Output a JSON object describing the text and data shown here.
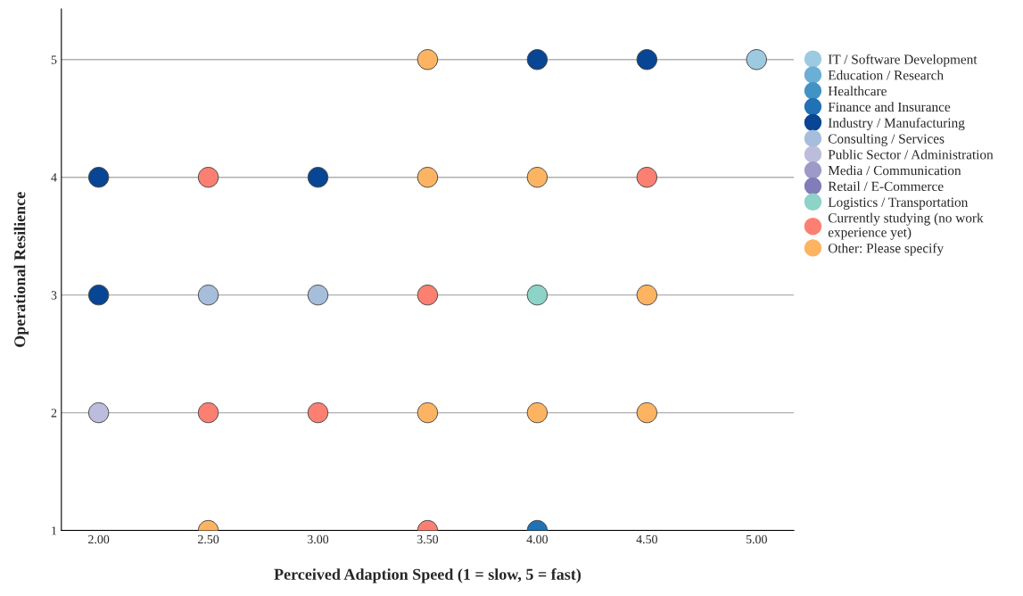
{
  "chart_data": {
    "type": "scatter",
    "xlabel": "Perceived Adaption Speed (1 = slow, 5 = fast)",
    "ylabel": "Operational Resilience",
    "xlim": [
      1.83,
      5.17
    ],
    "ylim": [
      1,
      5.43
    ],
    "xticks": [
      {
        "value": 2,
        "label": "2.00"
      },
      {
        "value": 2.5,
        "label": "2.50"
      },
      {
        "value": 3,
        "label": "3.00"
      },
      {
        "value": 3.5,
        "label": "3.50"
      },
      {
        "value": 4,
        "label": "4.00"
      },
      {
        "value": 4.5,
        "label": "4.50"
      },
      {
        "value": 5,
        "label": "5.00"
      }
    ],
    "yticks": [
      1,
      2,
      3,
      4,
      5
    ],
    "grid": "y",
    "legend": "right",
    "marker": "circle",
    "series": [
      {
        "name": "IT / Software Development",
        "color": "#9ecae1",
        "x": [
          5
        ],
        "values": [
          5
        ]
      },
      {
        "name": "Education / Research",
        "color": "#6baed6"
      },
      {
        "name": "Healthcare",
        "color": "#4292c6"
      },
      {
        "name": "Finance and Insurance",
        "color": "#2171b5",
        "x": [
          4
        ],
        "values": [
          1
        ]
      },
      {
        "name": "Industry / Manufacturing",
        "color": "#084594",
        "x": [
          4,
          4.5,
          2,
          3,
          2
        ],
        "values": [
          5,
          5,
          4,
          4,
          3
        ]
      },
      {
        "name": "Consulting / Services",
        "color": "#a6bddb",
        "x": [
          2.5,
          3
        ],
        "values": [
          3,
          3
        ]
      },
      {
        "name": "Public Sector / Administration",
        "color": "#bcbddc",
        "x": [
          2
        ],
        "values": [
          2
        ]
      },
      {
        "name": "Media / Communication",
        "color": "#9e9ac8"
      },
      {
        "name": "Retail / E-Commerce",
        "color": "#807dba"
      },
      {
        "name": "Logistics / Transportation",
        "color": "#8dd3c7",
        "x": [
          4
        ],
        "values": [
          3
        ]
      },
      {
        "name": "Currently studying (no work\nexperience yet)",
        "color": "#fb8072",
        "x": [
          2.5,
          4.5,
          3.5,
          2.5,
          3,
          3.5
        ],
        "values": [
          4,
          4,
          3,
          2,
          2,
          1
        ]
      },
      {
        "name": "Other: Please specify",
        "color": "#fdb462",
        "x": [
          3.5,
          3.5,
          4,
          4.5,
          3.5,
          4,
          4.5,
          2.5
        ],
        "values": [
          5,
          4,
          4,
          3,
          2,
          2,
          2,
          1
        ]
      }
    ]
  }
}
